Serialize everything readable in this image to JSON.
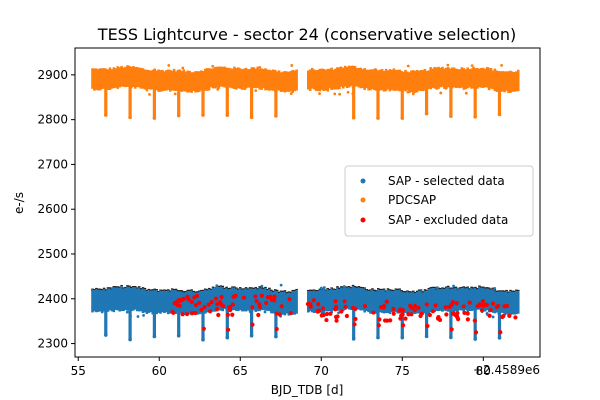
{
  "chart_data": {
    "type": "scatter",
    "title": "TESS Lightcurve - sector 24 (conservative selection)",
    "xlabel": "BJD_TDB [d]",
    "ylabel": "e-/s",
    "x_offset_label": "+2.4589e6",
    "xlim": [
      54.8,
      83.5
    ],
    "ylim": [
      2270,
      2960
    ],
    "xticks": [
      55,
      60,
      65,
      70,
      75,
      80
    ],
    "yticks": [
      2300,
      2400,
      2500,
      2600,
      2700,
      2800,
      2900
    ],
    "grid": false,
    "legend_position": "center-right",
    "gap": [
      68.4,
      69.1
    ],
    "dips_x": [
      56.7,
      58.2,
      59.7,
      61.2,
      62.7,
      64.2,
      65.7,
      67.2,
      72.0,
      73.5,
      75.0,
      76.5,
      78.0,
      79.5,
      81.0
    ],
    "series": [
      {
        "name": "SAP - selected data",
        "color": "#1f77b4",
        "baseline": 2395,
        "band_half_width": 22,
        "dip_depth": 75
      },
      {
        "name": "PDCSAP",
        "color": "#ff7f0e",
        "baseline": 2890,
        "band_half_width": 20,
        "dip_depth": 75
      },
      {
        "name": "SAP - excluded data",
        "color": "#ff0000",
        "baseline": 2385,
        "x_range": [
          60.5,
          82.0
        ]
      }
    ]
  }
}
